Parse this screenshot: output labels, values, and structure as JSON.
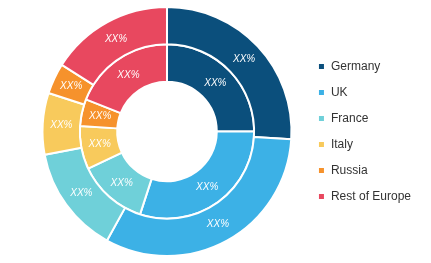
{
  "chart_data": {
    "type": "doughnut",
    "categories": [
      "Germany",
      "UK",
      "France",
      "Italy",
      "Russia",
      "Rest of Europe"
    ],
    "colors": [
      "#0b4f7c",
      "#3cb1e6",
      "#6fd0d9",
      "#f8ca5c",
      "#f6922c",
      "#e8485f"
    ],
    "legend": "right",
    "data_labels": true,
    "series": [
      {
        "values": [
          26,
          32,
          14,
          8,
          4,
          16
        ],
        "value_labels": [
          "XX%",
          "XX%",
          "XX%",
          "XX%",
          "XX%",
          "XX%"
        ]
      },
      {
        "values": [
          25,
          30,
          13,
          8,
          5,
          19
        ],
        "value_labels": [
          "XX%",
          "XX%",
          "XX%",
          "XX%",
          "XX%",
          "XX%"
        ]
      }
    ]
  }
}
